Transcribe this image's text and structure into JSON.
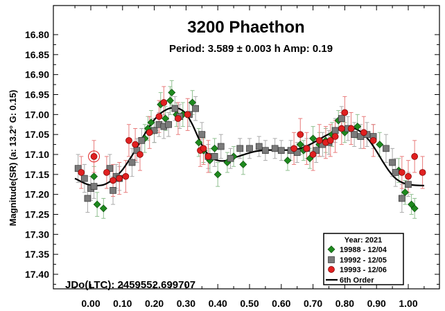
{
  "chart_data": {
    "type": "scatter",
    "title": "3200 Phaethon",
    "subtitle": "Period: 3.589 ± 0.003 h  Amp: 0.19",
    "ylabel": "Magnitude(SR)  (a: 13.2°  G: 0.15)",
    "xlabel": "",
    "annotation": "JDo(LTC): 2459552.699707",
    "xlim": [
      -0.09,
      1.09
    ],
    "ylim": [
      17.45,
      16.74
    ],
    "y_inverted": true,
    "xticks": [
      "0.00",
      "0.10",
      "0.20",
      "0.30",
      "0.40",
      "0.50",
      "0.60",
      "0.70",
      "0.80",
      "0.90",
      "1.00"
    ],
    "yticks": [
      "16.80",
      "16.85",
      "16.90",
      "16.95",
      "17.00",
      "17.05",
      "17.10",
      "17.15",
      "17.20",
      "17.25",
      "17.30",
      "17.35",
      "17.40"
    ],
    "legend": {
      "title": "Year: 2021",
      "placement": "bottom-right"
    },
    "fit": {
      "name": "6th Order",
      "color": "#000000",
      "points": [
        [
          -0.05,
          17.16
        ],
        [
          -0.02,
          17.172
        ],
        [
          0.0,
          17.177
        ],
        [
          0.02,
          17.178
        ],
        [
          0.04,
          17.176
        ],
        [
          0.06,
          17.168
        ],
        [
          0.08,
          17.155
        ],
        [
          0.1,
          17.138
        ],
        [
          0.12,
          17.115
        ],
        [
          0.14,
          17.09
        ],
        [
          0.16,
          17.062
        ],
        [
          0.18,
          17.036
        ],
        [
          0.2,
          17.013
        ],
        [
          0.22,
          16.997
        ],
        [
          0.24,
          16.987
        ],
        [
          0.26,
          16.983
        ],
        [
          0.28,
          16.986
        ],
        [
          0.3,
          16.998
        ],
        [
          0.32,
          17.025
        ],
        [
          0.34,
          17.06
        ],
        [
          0.36,
          17.09
        ],
        [
          0.38,
          17.108
        ],
        [
          0.4,
          17.115
        ],
        [
          0.42,
          17.116
        ],
        [
          0.44,
          17.112
        ],
        [
          0.46,
          17.106
        ],
        [
          0.48,
          17.101
        ],
        [
          0.5,
          17.096
        ],
        [
          0.52,
          17.092
        ],
        [
          0.54,
          17.09
        ],
        [
          0.56,
          17.089
        ],
        [
          0.58,
          17.089
        ],
        [
          0.6,
          17.089
        ],
        [
          0.62,
          17.089
        ],
        [
          0.64,
          17.088
        ],
        [
          0.66,
          17.085
        ],
        [
          0.68,
          17.079
        ],
        [
          0.7,
          17.071
        ],
        [
          0.72,
          17.062
        ],
        [
          0.74,
          17.053
        ],
        [
          0.76,
          17.045
        ],
        [
          0.78,
          17.038
        ],
        [
          0.8,
          17.034
        ],
        [
          0.82,
          17.033
        ],
        [
          0.84,
          17.038
        ],
        [
          0.86,
          17.05
        ],
        [
          0.88,
          17.068
        ],
        [
          0.9,
          17.092
        ],
        [
          0.92,
          17.118
        ],
        [
          0.94,
          17.142
        ],
        [
          0.96,
          17.16
        ],
        [
          0.98,
          17.17
        ],
        [
          1.0,
          17.175
        ],
        [
          1.02,
          17.177
        ],
        [
          1.05,
          17.178
        ]
      ]
    },
    "series": [
      {
        "name": "19988 - 12/04",
        "marker": "diamond",
        "color": "#1e8a1e",
        "err_color": "#8fbf8f",
        "points": [
          [
            0.01,
            17.155,
            0.025
          ],
          [
            0.02,
            17.225,
            0.03
          ],
          [
            0.04,
            17.235,
            0.025
          ],
          [
            0.17,
            17.06,
            0.035
          ],
          [
            0.18,
            17.035,
            0.03
          ],
          [
            0.19,
            17.02,
            0.03
          ],
          [
            0.2,
            17.04,
            0.03
          ],
          [
            0.22,
            16.975,
            0.03
          ],
          [
            0.235,
            17.01,
            0.03
          ],
          [
            0.25,
            16.965,
            0.035
          ],
          [
            0.255,
            16.945,
            0.03
          ],
          [
            0.27,
            17.0,
            0.03
          ],
          [
            0.29,
            17.0,
            0.03
          ],
          [
            0.32,
            16.97,
            0.03
          ],
          [
            0.34,
            17.07,
            0.035
          ],
          [
            0.355,
            17.09,
            0.03
          ],
          [
            0.375,
            17.115,
            0.03
          ],
          [
            0.39,
            17.085,
            0.025
          ],
          [
            0.4,
            17.15,
            0.03
          ],
          [
            0.43,
            17.12,
            0.025
          ],
          [
            0.45,
            17.105,
            0.025
          ],
          [
            0.48,
            17.125,
            0.025
          ],
          [
            0.62,
            17.115,
            0.025
          ],
          [
            0.66,
            17.075,
            0.025
          ],
          [
            0.67,
            17.09,
            0.025
          ],
          [
            0.69,
            17.11,
            0.025
          ],
          [
            0.7,
            17.06,
            0.03
          ],
          [
            0.72,
            17.075,
            0.03
          ],
          [
            0.74,
            17.065,
            0.03
          ],
          [
            0.76,
            17.05,
            0.03
          ],
          [
            0.78,
            17.015,
            0.025
          ],
          [
            0.8,
            17.045,
            0.025
          ],
          [
            0.84,
            17.03,
            0.03
          ],
          [
            0.91,
            17.075,
            0.03
          ],
          [
            0.97,
            17.14,
            0.03
          ],
          [
            0.99,
            17.195,
            0.03
          ],
          [
            1.01,
            17.225,
            0.025
          ],
          [
            1.02,
            17.235,
            0.025
          ]
        ]
      },
      {
        "name": "19992 - 12/05",
        "marker": "square",
        "color": "#7a7a7a",
        "err_color": "#a9a9a9",
        "points": [
          [
            -0.04,
            17.135,
            0.035
          ],
          [
            -0.02,
            17.16,
            0.035
          ],
          [
            -0.01,
            17.21,
            0.035
          ],
          [
            0.0,
            17.185,
            0.03
          ],
          [
            0.01,
            17.18,
            0.03
          ],
          [
            0.06,
            17.135,
            0.035
          ],
          [
            0.07,
            17.19,
            0.035
          ],
          [
            0.08,
            17.155,
            0.03
          ],
          [
            0.09,
            17.16,
            0.03
          ],
          [
            0.13,
            17.12,
            0.035
          ],
          [
            0.145,
            17.09,
            0.03
          ],
          [
            0.16,
            17.065,
            0.03
          ],
          [
            0.2,
            17.04,
            0.03
          ],
          [
            0.215,
            17.025,
            0.03
          ],
          [
            0.23,
            17.03,
            0.03
          ],
          [
            0.245,
            17.025,
            0.03
          ],
          [
            0.265,
            16.985,
            0.03
          ],
          [
            0.28,
            17.005,
            0.03
          ],
          [
            0.31,
            17.0,
            0.03
          ],
          [
            0.33,
            16.985,
            0.03
          ],
          [
            0.35,
            17.05,
            0.03
          ],
          [
            0.37,
            17.105,
            0.03
          ],
          [
            0.39,
            17.105,
            0.025
          ],
          [
            0.41,
            17.08,
            0.03
          ],
          [
            0.44,
            17.11,
            0.025
          ],
          [
            0.47,
            17.085,
            0.025
          ],
          [
            0.5,
            17.085,
            0.025
          ],
          [
            0.53,
            17.08,
            0.025
          ],
          [
            0.55,
            17.09,
            0.025
          ],
          [
            0.58,
            17.085,
            0.025
          ],
          [
            0.6,
            17.09,
            0.025
          ],
          [
            0.63,
            17.09,
            0.025
          ],
          [
            0.65,
            17.095,
            0.025
          ],
          [
            0.68,
            17.085,
            0.025
          ],
          [
            0.71,
            17.09,
            0.03
          ],
          [
            0.73,
            17.075,
            0.03
          ],
          [
            0.75,
            17.07,
            0.03
          ],
          [
            0.77,
            17.04,
            0.03
          ],
          [
            0.79,
            17.01,
            0.03
          ],
          [
            0.81,
            17.035,
            0.03
          ],
          [
            0.83,
            17.05,
            0.03
          ],
          [
            0.85,
            17.055,
            0.03
          ],
          [
            0.87,
            17.05,
            0.03
          ],
          [
            0.89,
            17.055,
            0.03
          ],
          [
            0.93,
            17.085,
            0.035
          ],
          [
            0.95,
            17.12,
            0.035
          ],
          [
            0.96,
            17.145,
            0.035
          ],
          [
            0.98,
            17.21,
            0.035
          ],
          [
            1.0,
            17.175,
            0.03
          ]
        ]
      },
      {
        "name": "19993 - 12/06",
        "marker": "circle",
        "color": "#e02020",
        "err_color": "#e87a7a",
        "points": [
          [
            -0.03,
            17.145,
            0.04
          ],
          [
            0.01,
            17.105,
            0.04
          ],
          [
            0.05,
            17.145,
            0.04
          ],
          [
            0.07,
            17.165,
            0.04
          ],
          [
            0.09,
            17.16,
            0.04
          ],
          [
            0.11,
            17.155,
            0.04
          ],
          [
            0.12,
            17.065,
            0.04
          ],
          [
            0.14,
            17.075,
            0.04
          ],
          [
            0.155,
            17.1,
            0.04
          ],
          [
            0.185,
            17.045,
            0.04
          ],
          [
            0.215,
            17.005,
            0.04
          ],
          [
            0.23,
            16.97,
            0.04
          ],
          [
            0.275,
            17.01,
            0.04
          ],
          [
            0.305,
            17.0,
            0.04
          ],
          [
            0.345,
            17.09,
            0.04
          ],
          [
            0.355,
            17.085,
            0.04
          ],
          [
            0.37,
            17.105,
            0.04
          ],
          [
            0.64,
            17.085,
            0.04
          ],
          [
            0.66,
            17.05,
            0.04
          ],
          [
            0.68,
            17.085,
            0.04
          ],
          [
            0.7,
            17.1,
            0.04
          ],
          [
            0.72,
            17.065,
            0.04
          ],
          [
            0.74,
            17.07,
            0.04
          ],
          [
            0.755,
            17.065,
            0.04
          ],
          [
            0.77,
            17.055,
            0.04
          ],
          [
            0.79,
            17.035,
            0.04
          ],
          [
            0.8,
            16.995,
            0.04
          ],
          [
            0.82,
            17.035,
            0.04
          ],
          [
            0.86,
            17.045,
            0.04
          ],
          [
            0.89,
            17.065,
            0.04
          ],
          [
            0.98,
            17.145,
            0.04
          ],
          [
            1.0,
            17.155,
            0.04
          ],
          [
            1.02,
            17.105,
            0.04
          ],
          [
            1.045,
            17.145,
            0.04
          ]
        ]
      }
    ]
  }
}
